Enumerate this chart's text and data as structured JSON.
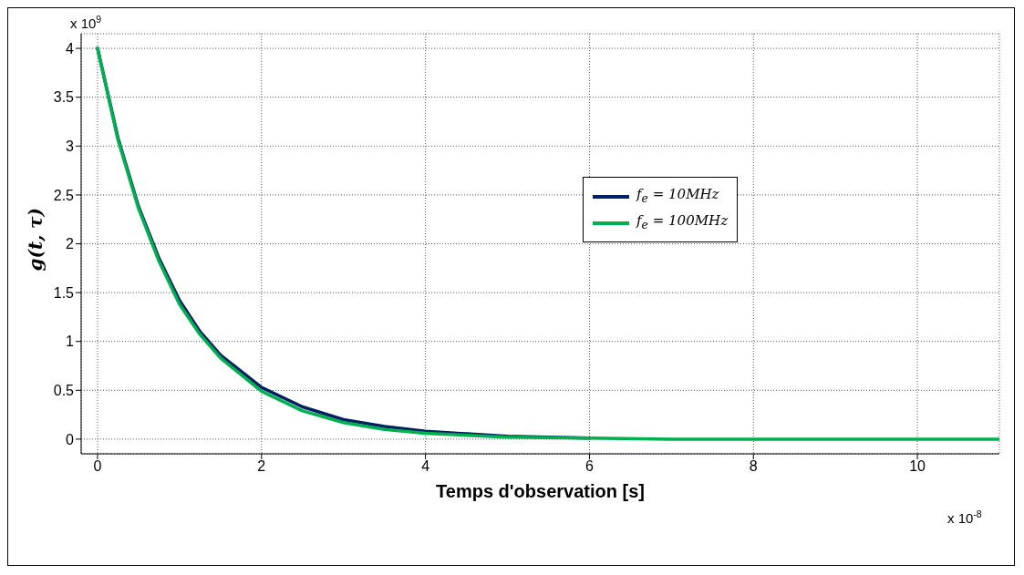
{
  "chart_data": {
    "type": "line",
    "xlabel": "Temps d'observation [s]",
    "ylabel": "g(t, τ)",
    "xlim": [
      -0.2,
      11
    ],
    "xticks": [
      0,
      2,
      4,
      6,
      8,
      10
    ],
    "ylim": [
      -0.15,
      4.15
    ],
    "yticks": [
      0,
      0.5,
      1,
      1.5,
      2,
      2.5,
      3,
      3.5,
      4
    ],
    "grid": true,
    "legend": "right",
    "marker": "none",
    "line_style": "solid",
    "annotations": [
      "x 10$^{9}$",
      "x 10$^{-8}$"
    ],
    "series": [
      {
        "name": "f$_{e}$ = 10MHz",
        "color": "#002060",
        "x": [
          0,
          0.25,
          0.5,
          0.75,
          1,
          1.25,
          1.5,
          2,
          2.5,
          3,
          3.5,
          4,
          5,
          6
        ],
        "values": [
          4,
          3.08,
          2.38,
          1.85,
          1.42,
          1.1,
          0.86,
          0.53,
          0.33,
          0.2,
          0.13,
          0.08,
          0.03,
          0.01
        ]
      },
      {
        "name": "f$_{e}$ = 100MHz",
        "color": "#00b050",
        "x": [
          0,
          0.25,
          0.5,
          0.75,
          1,
          1.25,
          1.5,
          2,
          2.5,
          3,
          3.5,
          4,
          5,
          6,
          7,
          8,
          9,
          10,
          11
        ],
        "values": [
          4,
          3.06,
          2.36,
          1.82,
          1.38,
          1.07,
          0.83,
          0.49,
          0.29,
          0.17,
          0.1,
          0.06,
          0.02,
          0.01,
          0,
          0,
          0,
          0,
          0
        ]
      }
    ]
  }
}
